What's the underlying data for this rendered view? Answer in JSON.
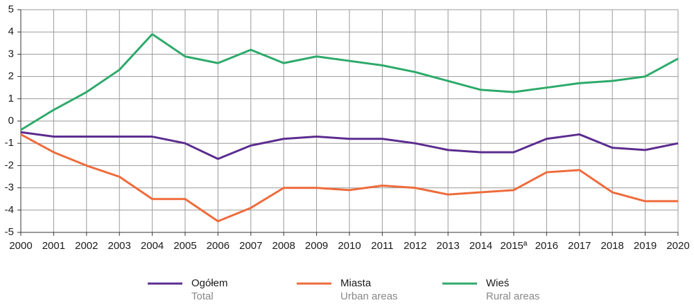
{
  "chart_data": {
    "type": "line",
    "categories": [
      "2000",
      "2001",
      "2002",
      "2003",
      "2004",
      "2005",
      "2006",
      "2007",
      "2008",
      "2009",
      "2010",
      "2011",
      "2012",
      "2013",
      "2014",
      "2015ª",
      "2016",
      "2017",
      "2018",
      "2019",
      "2020"
    ],
    "series": [
      {
        "name": "Ogółem",
        "name_en": "Total",
        "color": "#5b2c8f",
        "values": [
          -0.5,
          -0.7,
          -0.7,
          -0.7,
          -0.7,
          -1.0,
          -1.7,
          -1.1,
          -0.8,
          -0.7,
          -0.8,
          -0.8,
          -1.0,
          -1.3,
          -1.4,
          -1.4,
          -0.8,
          -0.6,
          -1.2,
          -1.3,
          -1.0
        ]
      },
      {
        "name": "Miasta",
        "name_en": "Urban areas",
        "color": "#ee6b3b",
        "values": [
          -0.6,
          -1.4,
          -2.0,
          -2.5,
          -3.5,
          -3.5,
          -4.5,
          -3.9,
          -3.0,
          -3.0,
          -3.1,
          -2.9,
          -3.0,
          -3.3,
          -3.2,
          -3.1,
          -2.3,
          -2.2,
          -3.2,
          -3.6,
          -3.6
        ]
      },
      {
        "name": "Wieś",
        "name_en": "Rural areas",
        "color": "#2daa6a",
        "values": [
          -0.4,
          0.5,
          1.3,
          2.3,
          3.9,
          2.9,
          2.6,
          3.2,
          2.6,
          2.9,
          2.7,
          2.5,
          2.2,
          1.8,
          1.4,
          1.3,
          1.5,
          1.7,
          1.8,
          2.0,
          2.8
        ]
      }
    ],
    "ylim": [
      -5,
      5
    ],
    "yticks": [
      -5,
      -4,
      -3,
      -2,
      -1,
      0,
      1,
      2,
      3,
      4,
      5
    ],
    "grid": true,
    "legend": "bottom"
  }
}
